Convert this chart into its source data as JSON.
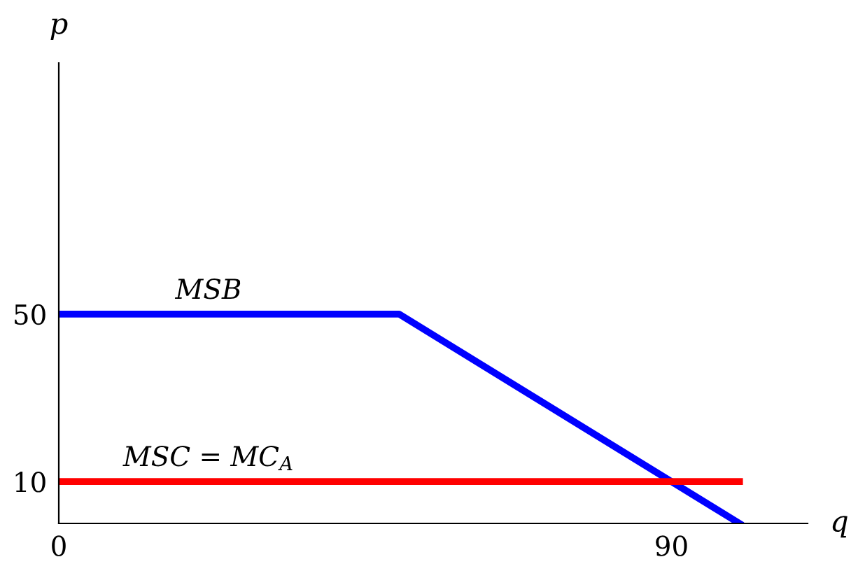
{
  "chart_data": {
    "type": "line",
    "xlabel": "q",
    "ylabel": "p",
    "series": [
      {
        "name": "MSB",
        "color": "#0000ff",
        "x": [
          0,
          50,
          100
        ],
        "values": [
          50,
          50,
          0
        ]
      },
      {
        "name": "MSC = MC$_{A}$",
        "color": "#ff0000",
        "x": [
          0,
          100
        ],
        "values": [
          10,
          10
        ]
      }
    ],
    "xlim": [
      0,
      110
    ],
    "ylim": [
      0,
      110
    ],
    "xticks": [
      0,
      90
    ],
    "yticks": [
      10,
      50
    ],
    "grid": false,
    "legend": false,
    "marker": "none",
    "line_style": "solid"
  }
}
